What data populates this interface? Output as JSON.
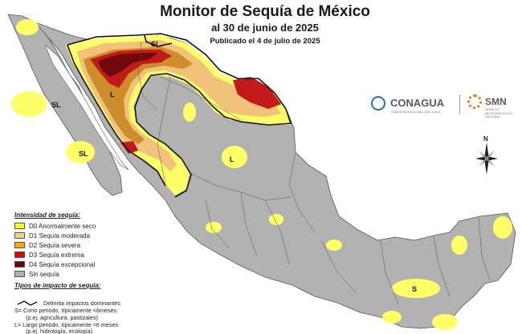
{
  "header": {
    "title": "Monitor de Sequía de México",
    "date_line": "al 30 de junio de 2025",
    "published_line": "Publicado el 4 de julio de 2025"
  },
  "logos": {
    "conagua": "CONAGUA",
    "conagua_sub": "COMISIÓN NACIONAL DEL AGUA",
    "smn": "SMN",
    "smn_sub": "SERVICIO METEOROLÓGICO NACIONAL"
  },
  "compass": {
    "north": "N"
  },
  "legend": {
    "title": "Intensidad de sequía:",
    "items": [
      {
        "label": "D0 Anormalmente seco",
        "color": "#ffff00"
      },
      {
        "label": "D1 Sequía moderada",
        "color": "#fcd37f"
      },
      {
        "label": "D2 Sequía severa",
        "color": "#ffaa00"
      },
      {
        "label": "D3 Sequía extrema",
        "color": "#e60000"
      },
      {
        "label": "D4 Sequía excepcional",
        "color": "#730000"
      },
      {
        "label": "Sin sequía",
        "color": "#b2b2b2"
      }
    ]
  },
  "impact": {
    "title": "Tipos de impacto de sequía:",
    "delimita": "Delimita impactos dominantes",
    "s_line1": "S= Corto periodo, típicamente <6meses",
    "s_line2": "(p.ej. agricultura, pastizales)",
    "l_line1": "L= Largo periodo, típicamente >6 meses",
    "l_line2": "(p.ej. hidrología, ecología)"
  },
  "map_labels": {
    "sl_sonora": "SL",
    "l_norte": "L",
    "l_centro": "L",
    "sl_bc_norte": "SL",
    "sl_bcs": "SL",
    "s_yucatan": "S"
  },
  "colors": {
    "land": "#b2b2b2",
    "border": "#555555",
    "d0": "#ffff66",
    "d1": "#f2c27a",
    "d2": "#cc8e2a",
    "d3": "#c21a1a",
    "d4": "#6e0a0a"
  }
}
